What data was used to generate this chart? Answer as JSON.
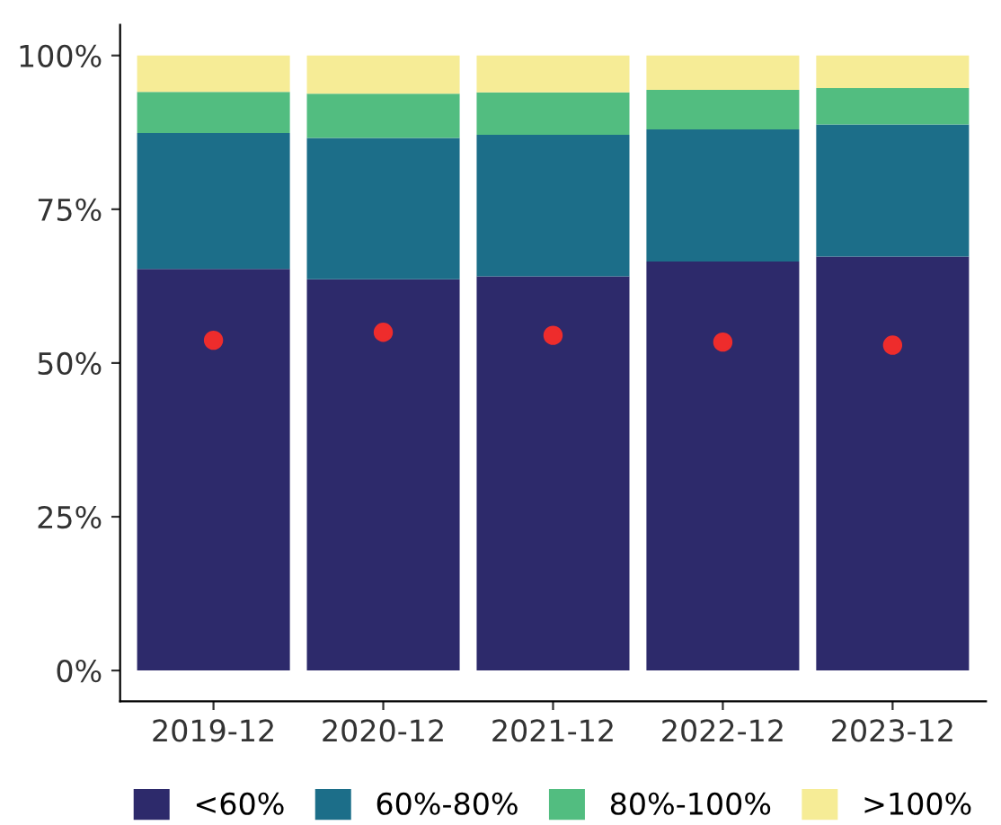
{
  "chart_data": {
    "type": "bar",
    "stacked": true,
    "categories": [
      "2019-12",
      "2020-12",
      "2021-12",
      "2022-12",
      "2023-12"
    ],
    "series": [
      {
        "name": "<60%",
        "color": "#2d2a6b",
        "values": [
          65.3,
          63.6,
          64.1,
          66.5,
          67.3
        ]
      },
      {
        "name": "60%-80%",
        "color": "#1c6e89",
        "values": [
          22.1,
          23.0,
          23.0,
          21.5,
          21.5
        ]
      },
      {
        "name": "80%-100%",
        "color": "#52bd80",
        "values": [
          6.7,
          7.2,
          6.9,
          6.4,
          5.9
        ]
      },
      {
        "name": ">100%",
        "color": "#f6ec96",
        "values": [
          5.9,
          6.2,
          6.0,
          5.6,
          5.3
        ]
      },
      {
        "type": "scatter",
        "color": "#ee2c2c",
        "values": [
          53.7,
          55.0,
          54.5,
          53.4,
          52.9
        ]
      }
    ],
    "ylim": [
      -5,
      105
    ],
    "yticks": [
      {
        "value": 0,
        "label": "0%"
      },
      {
        "value": 25,
        "label": "25%"
      },
      {
        "value": 50,
        "label": "50%"
      },
      {
        "value": 75,
        "label": "75%"
      },
      {
        "value": 100,
        "label": "100%"
      }
    ],
    "grid": false,
    "legend": "bottom",
    "marker": "circle"
  }
}
